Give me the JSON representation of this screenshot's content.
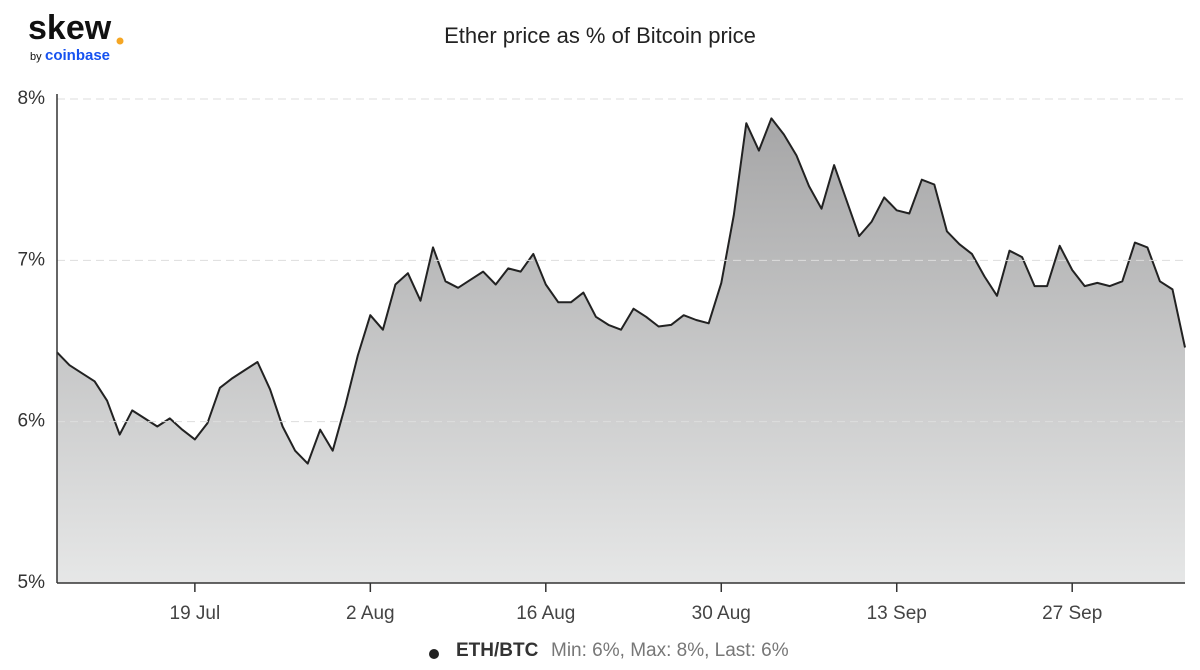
{
  "chart_data": {
    "type": "area",
    "title": "Ether price as % of Bitcoin price",
    "logo": {
      "name": "skew",
      "by": "by",
      "brand": "coinbase"
    },
    "categories": [
      null,
      null,
      null,
      null,
      null,
      null,
      null,
      null,
      null,
      null,
      null,
      "19 Jul",
      null,
      null,
      null,
      null,
      null,
      null,
      null,
      null,
      null,
      null,
      null,
      null,
      null,
      "2 Aug",
      null,
      null,
      null,
      null,
      null,
      null,
      null,
      null,
      null,
      null,
      null,
      null,
      null,
      "16 Aug",
      null,
      null,
      null,
      null,
      null,
      null,
      null,
      null,
      null,
      null,
      null,
      null,
      null,
      "30 Aug",
      null,
      null,
      null,
      null,
      null,
      null,
      null,
      null,
      null,
      null,
      null,
      null,
      null,
      "13 Sep",
      null,
      null,
      null,
      null,
      null,
      null,
      null,
      null,
      null,
      null,
      null,
      null,
      null,
      "27 Sep",
      null,
      null,
      null,
      null,
      null,
      null,
      null,
      null,
      null
    ],
    "series": [
      {
        "name": "ETH/BTC",
        "color": "#222222",
        "values": [
          6.43,
          6.35,
          6.3,
          6.25,
          6.13,
          5.92,
          6.07,
          6.02,
          5.97,
          6.02,
          5.95,
          5.89,
          5.99,
          6.21,
          6.27,
          6.32,
          6.37,
          6.2,
          5.97,
          5.82,
          5.74,
          5.95,
          5.82,
          6.1,
          6.41,
          6.66,
          6.57,
          6.85,
          6.92,
          6.75,
          7.08,
          6.87,
          6.83,
          6.88,
          6.93,
          6.85,
          6.95,
          6.93,
          7.04,
          6.85,
          6.74,
          6.74,
          6.8,
          6.65,
          6.6,
          6.57,
          6.7,
          6.65,
          6.59,
          6.6,
          6.66,
          6.63,
          6.61,
          6.86,
          7.28,
          7.85,
          7.68,
          7.88,
          7.78,
          7.65,
          7.46,
          7.32,
          7.59,
          7.37,
          7.15,
          7.24,
          7.39,
          7.31,
          7.29,
          7.5,
          7.47,
          7.18,
          7.1,
          7.04,
          6.9,
          6.78,
          7.06,
          7.02,
          6.84,
          6.84,
          7.09,
          6.94,
          6.84,
          6.86,
          6.84,
          6.87,
          7.11,
          7.08,
          6.87,
          6.82,
          6.46
        ]
      }
    ],
    "legend_stats": "Min: 6%, Max: 8%, Last: 6%",
    "ylim": [
      5,
      8
    ],
    "yticks": [
      {
        "value": 5,
        "label": "5%"
      },
      {
        "value": 6,
        "label": "6%"
      },
      {
        "value": 7,
        "label": "7%"
      },
      {
        "value": 8,
        "label": "8%"
      }
    ],
    "grid": true
  }
}
